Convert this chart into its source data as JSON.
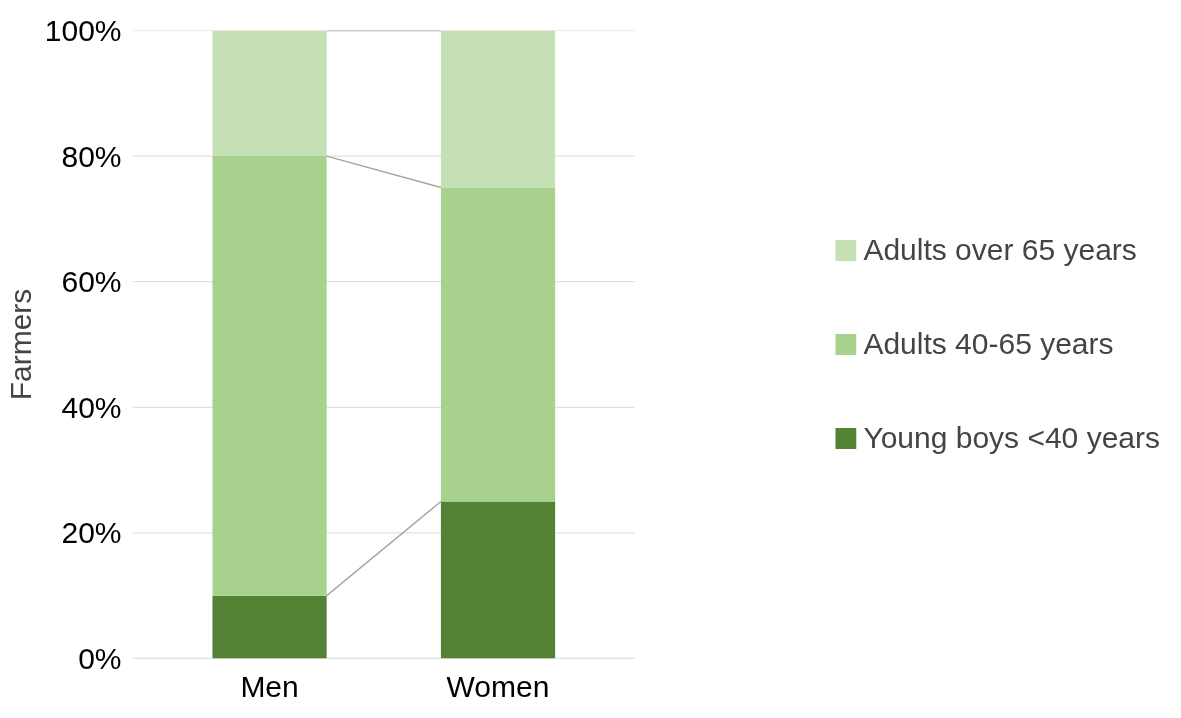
{
  "chart_data": {
    "type": "bar",
    "stacked": true,
    "ylabel": "Farmers",
    "categories": [
      "Men",
      "Women"
    ],
    "series": [
      {
        "name": "Young boys <40 years",
        "color": "#548235",
        "values": [
          10,
          25
        ]
      },
      {
        "name": "Adults 40-65 years",
        "color": "#a9d18e",
        "values": [
          70,
          50
        ]
      },
      {
        "name": "Adults over 65 years",
        "color": "#c5e0b4",
        "values": [
          20,
          25
        ]
      }
    ],
    "ylim": [
      0,
      100
    ],
    "yticks": [
      {
        "value": 0,
        "label": "0%"
      },
      {
        "value": 20,
        "label": "20%"
      },
      {
        "value": 40,
        "label": "40%"
      },
      {
        "value": 60,
        "label": "60%"
      },
      {
        "value": 80,
        "label": "80%"
      },
      {
        "value": 100,
        "label": "100%"
      }
    ],
    "grid": true,
    "legend": "right"
  }
}
